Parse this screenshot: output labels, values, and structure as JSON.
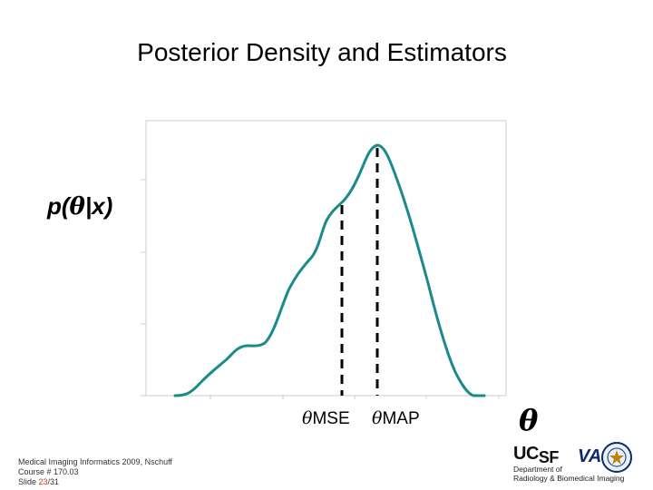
{
  "title": "Posterior Density and Estimators",
  "y_label": {
    "prefix": "p(",
    "symbol": "θ",
    "suffix": "|x)"
  },
  "x_axis_symbol": "θ",
  "estimators": {
    "mse": {
      "symbol": "θ",
      "label": "MSE"
    },
    "map": {
      "symbol": "θ",
      "label": "MAP"
    }
  },
  "footer": {
    "line1": "Medical Imaging Informatics 2009, Nschuff",
    "line2": "Course # 170.03",
    "slide_prefix": "Slide ",
    "slide_current": "23",
    "slide_sep": "/",
    "slide_total": "31"
  },
  "logos": {
    "ucsf_uc": "UC",
    "ucsf_sf": "SF",
    "dept_line1": "Department of",
    "dept_line2": "Radiology & Biomedical Imaging",
    "va": "VA"
  },
  "colors": {
    "curve": "#1a8a8a",
    "estimator_lines": "#000000",
    "frame": "#cccccc"
  }
}
